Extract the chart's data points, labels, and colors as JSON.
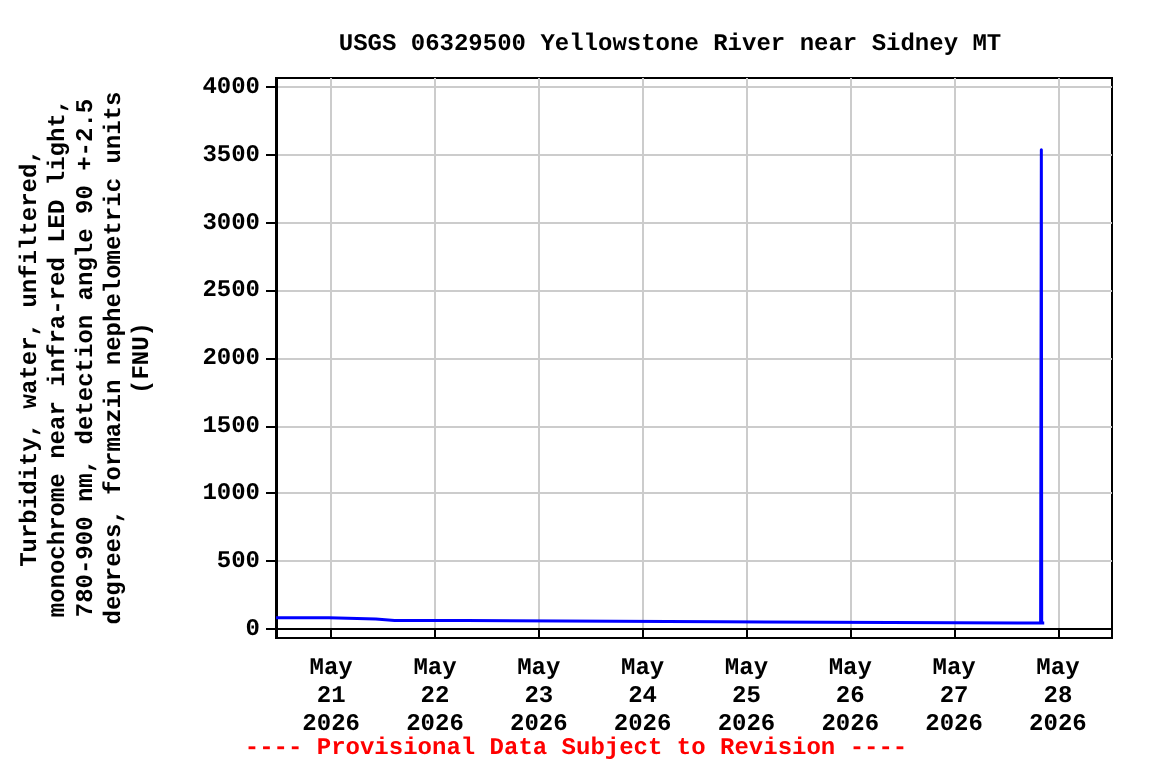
{
  "chart_data": {
    "type": "line",
    "title": "USGS 06329500 Yellowstone River near Sidney MT",
    "ylabel": "Turbidity, water, unfiltered,\nmonochrome near infra-red LED light,\n780-900 nm, detection angle 90 +-2.5\ndegrees, formazin nephelometric units\n(FNU)",
    "annotations": [
      "---- Provisional Data Subject to Revision ----"
    ],
    "x": [
      "2026-05-20T11:15",
      "2026-05-20T23:30",
      "2026-05-20T23:35",
      "2026-05-21T10:20",
      "2026-05-21T10:25",
      "2026-05-21T14:40",
      "2026-05-22T07:10",
      "2026-05-22T07:15",
      "2026-05-24T18:00",
      "2026-05-24T18:05",
      "2026-05-27T20:00",
      "2026-05-27T20:05",
      "2026-05-27T20:10",
      "2026-05-27T20:15",
      "2026-05-27T20:50"
    ],
    "series": [
      {
        "color": "#0000ff",
        "values": [
          80,
          80,
          70,
          70,
          60,
          60,
          60,
          50,
          50,
          40,
          40,
          1780,
          3540,
          40,
          40
        ]
      }
    ],
    "xlim": [
      "2026-05-20T11:15",
      "2026-05-28T12:30"
    ],
    "xticks": [
      {
        "value": "2026-05-21",
        "label": "May 21 2026"
      },
      {
        "value": "2026-05-22",
        "label": "May 22 2026"
      },
      {
        "value": "2026-05-23",
        "label": "May 23 2026"
      },
      {
        "value": "2026-05-24",
        "label": "May 24 2026"
      },
      {
        "value": "2026-05-25",
        "label": "May 25 2026"
      },
      {
        "value": "2026-05-26",
        "label": "May 26 2026"
      },
      {
        "value": "2026-05-27",
        "label": "May 27 2026"
      },
      {
        "value": "2026-05-28",
        "label": "May 28 2026"
      }
    ],
    "ylim": [
      -70,
      4070
    ],
    "yticks": [
      0,
      500,
      1000,
      1500,
      2000,
      2500,
      3000,
      3500,
      4000
    ],
    "grid": true,
    "marker": "none",
    "line_style": "solid"
  }
}
